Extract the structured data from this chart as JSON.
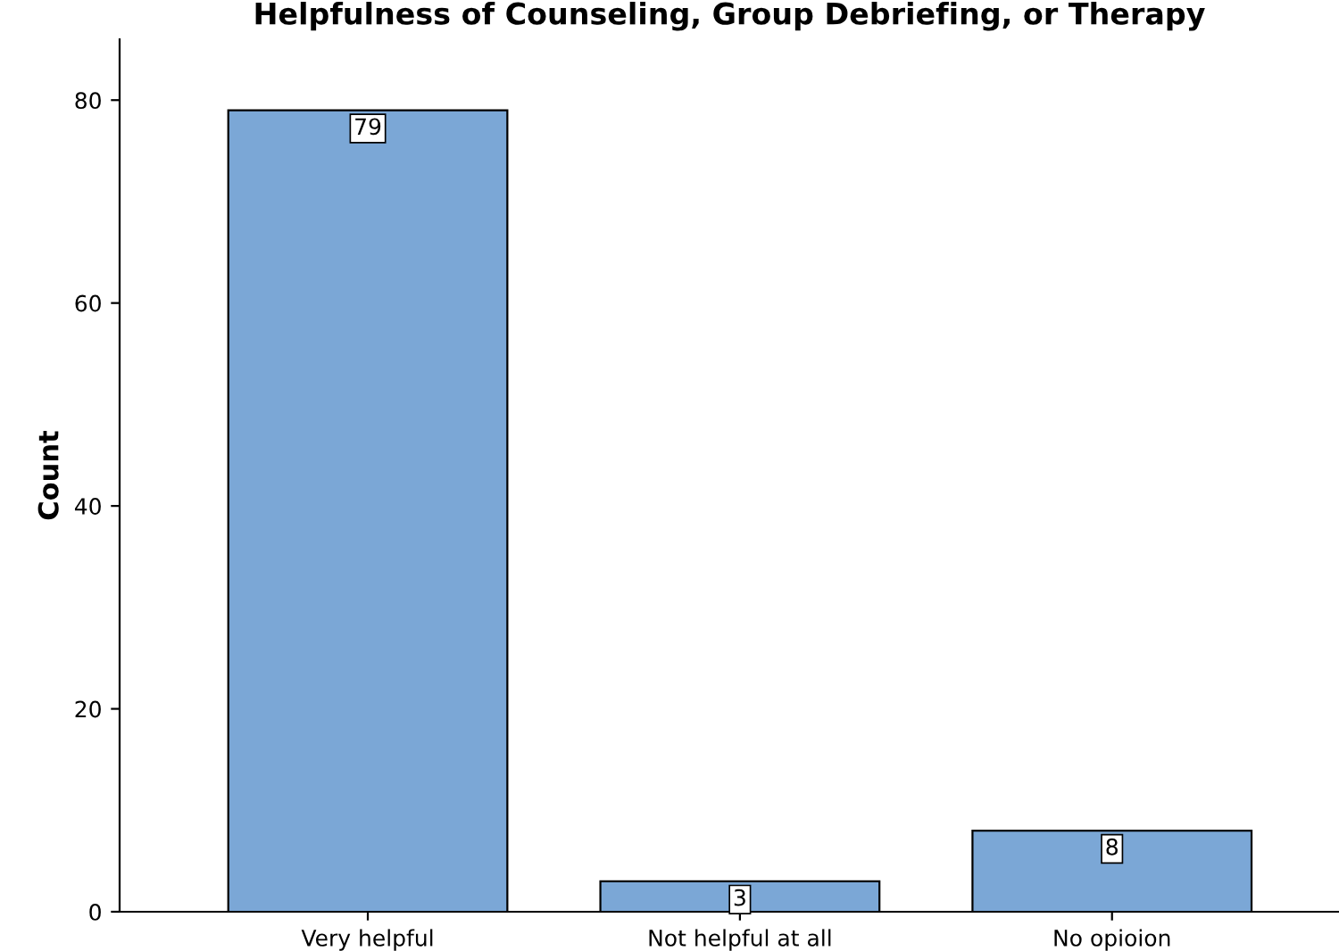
{
  "chart_data": {
    "type": "bar",
    "title": "Helpfulness of Counseling, Group Debriefing, or Therapy",
    "ylabel": "Count",
    "categories": [
      "Very helpful",
      "Not helpful at all",
      "No opioion"
    ],
    "values": [
      79,
      3,
      8
    ],
    "color": "#7ba7d6",
    "ylim": [
      0,
      86
    ],
    "yticks": [
      0,
      20,
      40,
      60,
      80
    ],
    "grid": false,
    "data_labels": true
  }
}
